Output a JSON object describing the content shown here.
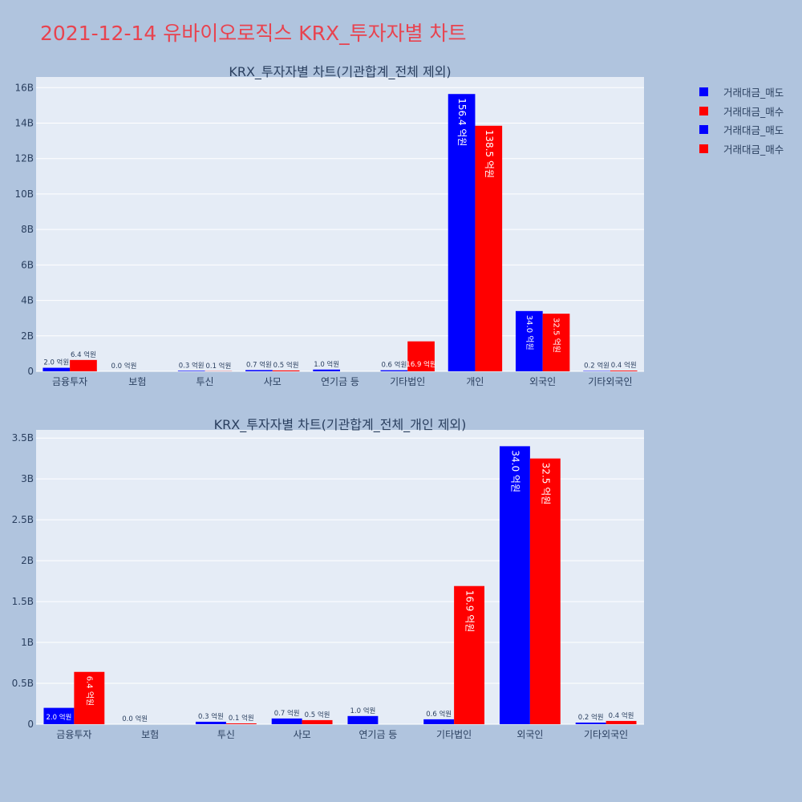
{
  "page": {
    "title": "2021-12-14 유바이오로직스 KRX_투자자별 차트"
  },
  "legend": {
    "items": [
      {
        "label": "거래대금_매도",
        "color": "#0000ff"
      },
      {
        "label": "거래대금_매수",
        "color": "#ff0000"
      },
      {
        "label": "거래대금_매도",
        "color": "#0000ff"
      },
      {
        "label": "거래대금_매수",
        "color": "#ff0000"
      }
    ]
  },
  "chart_data": [
    {
      "type": "bar",
      "title": "KRX_투자자별 차트(기관합계_전체 제외)",
      "categories": [
        "금융투자",
        "보험",
        "투신",
        "사모",
        "연기금 등",
        "기타법인",
        "개인",
        "외국인",
        "기타외국인"
      ],
      "series": [
        {
          "name": "거래대금_매도",
          "color": "#0000ff",
          "values": [
            200000000,
            0,
            30000000,
            70000000,
            100000000,
            60000000,
            15640000000,
            3400000000,
            20000000
          ],
          "labels": [
            "2.0 억원",
            "0.0 억원",
            "0.3 억원",
            "0.7 억원",
            "1.0 억원",
            "0.6 억원",
            "156.4 억원",
            "34.0 억원",
            "0.2 억원"
          ]
        },
        {
          "name": "거래대금_매수",
          "color": "#ff0000",
          "values": [
            640000000,
            0,
            10000000,
            50000000,
            0,
            1690000000,
            13850000000,
            3250000000,
            40000000
          ],
          "labels": [
            "6.4 억원",
            "",
            "0.1 억원",
            "0.5 억원",
            "",
            "16.9 억원",
            "138.5 억원",
            "32.5 억원",
            "0.4 억원"
          ]
        }
      ],
      "ylim": [
        0,
        16600000000
      ],
      "yticks": [
        0,
        2000000000,
        4000000000,
        6000000000,
        8000000000,
        10000000000,
        12000000000,
        14000000000,
        16000000000
      ],
      "ytick_labels": [
        "0",
        "2B",
        "4B",
        "6B",
        "8B",
        "10B",
        "12B",
        "14B",
        "16B"
      ],
      "grid": true,
      "legend": "top-right"
    },
    {
      "type": "bar",
      "title": "KRX_투자자별 차트(기관합계_전체_개인 제외)",
      "categories": [
        "금융투자",
        "보험",
        "투신",
        "사모",
        "연기금 등",
        "기타법인",
        "외국인",
        "기타외국인"
      ],
      "series": [
        {
          "name": "거래대금_매도",
          "color": "#0000ff",
          "values": [
            200000000,
            0,
            30000000,
            70000000,
            100000000,
            60000000,
            3400000000,
            20000000
          ],
          "labels": [
            "2.0 억원",
            "0.0 억원",
            "0.3 억원",
            "0.7 억원",
            "1.0 억원",
            "0.6 억원",
            "34.0 억원",
            "0.2 억원"
          ]
        },
        {
          "name": "거래대금_매수",
          "color": "#ff0000",
          "values": [
            640000000,
            0,
            10000000,
            50000000,
            0,
            1690000000,
            3250000000,
            40000000
          ],
          "labels": [
            "6.4 억원",
            "",
            "0.1 억원",
            "0.5 억원",
            "",
            "16.9 억원",
            "32.5 억원",
            "0.4 억원"
          ]
        }
      ],
      "ylim": [
        0,
        3600000000
      ],
      "yticks": [
        0,
        500000000,
        1000000000,
        1500000000,
        2000000000,
        2500000000,
        3000000000,
        3500000000
      ],
      "ytick_labels": [
        "0",
        "0.5B",
        "1B",
        "1.5B",
        "2B",
        "2.5B",
        "3B",
        "3.5B"
      ],
      "grid": true,
      "legend": "top-right"
    }
  ]
}
